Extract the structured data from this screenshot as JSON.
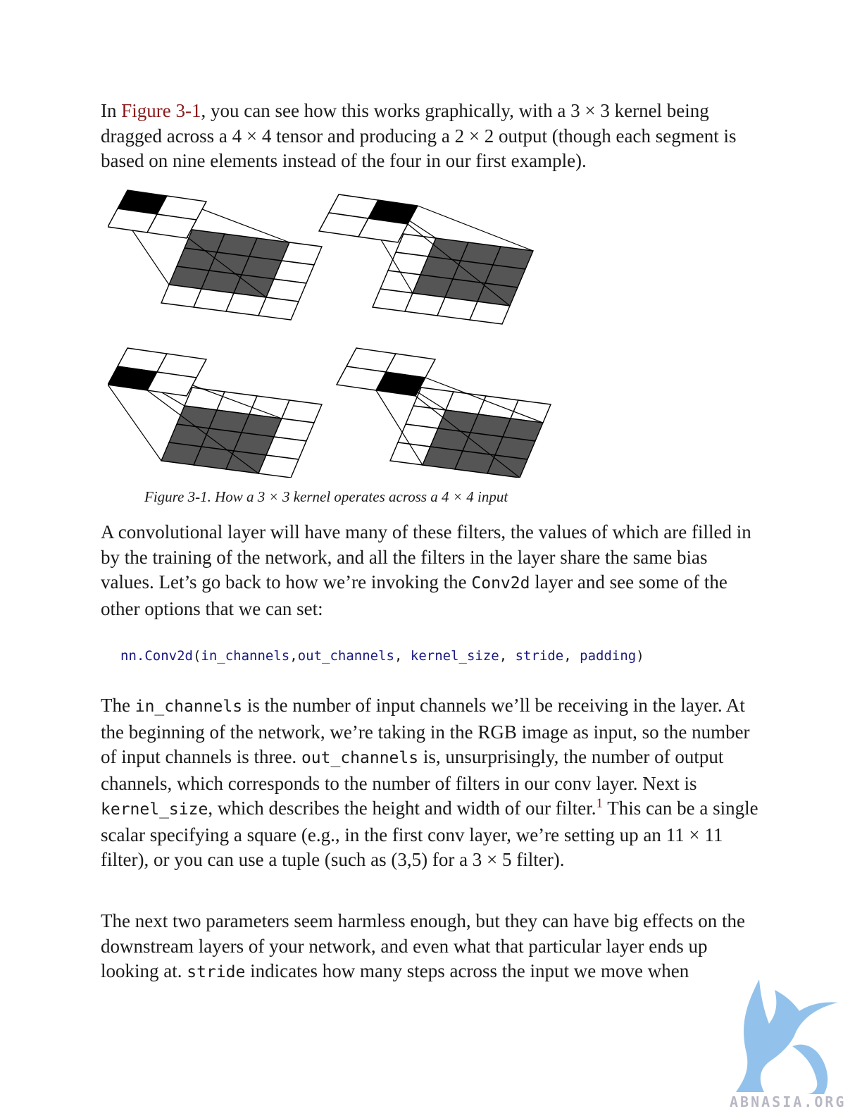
{
  "para1": {
    "t1": "In ",
    "link": "Figure 3-1",
    "t2": ", you can see how this works graphically, with a 3 × 3 kernel being dragged across a 4 × 4 tensor and producing a 2 × 2 output (though each segment is based on nine elements instead of the four in our first example)."
  },
  "figure": {
    "caption": "Figure 3-1. How a 3 × 3 kernel operates across a 4 × 4 input"
  },
  "para2": {
    "t1": "A convolutional layer will have many of these filters, the values of which are filled in by the training of the network, and all the filters in the layer share the same bias values. Let’s go back to how we’re invoking the ",
    "code1": "Conv2d",
    "t2": " layer and see some of the other options that we can set:"
  },
  "code": {
    "fn": "nn.Conv2d",
    "open": "(",
    "a1": "in_channels",
    "c1": ",",
    "a2": "out_channels",
    "c2": ", ",
    "a3": "kernel_size",
    "c3": ", ",
    "a4": "stride",
    "c4": ", ",
    "a5": "padding",
    "close": ")"
  },
  "para3": {
    "t1": "The ",
    "code1": "in_channels",
    "t2": " is the number of input channels we’ll be receiving in the layer. At the beginning of the network, we’re taking in the RGB image as input, so the number of input channels is three. ",
    "code2": "out_channels",
    "t3": " is, unsurprisingly, the number of output channels, which corresponds to the number of filters in our conv layer. Next is ",
    "code3": "kernel_size",
    "t4": ", which describes the height and width of our filter.",
    "footnote": "1",
    "t5": " This can be a single scalar specifying a square (e.g., in the first conv layer, we’re setting up an 11 × 11 filter), or you can use a tuple (such as (3,5) for a 3 × 5 filter)."
  },
  "para4": {
    "t1": "The next two parameters seem harmless enough, but they can have big effects on the downstream layers of your network, and even what that particular layer ends up looking at. ",
    "code1": "stride",
    "t2": " indicates how many steps across the input we move when"
  },
  "watermark": {
    "text": "ABNASIA.ORG",
    "color": "#7fb8e8"
  }
}
